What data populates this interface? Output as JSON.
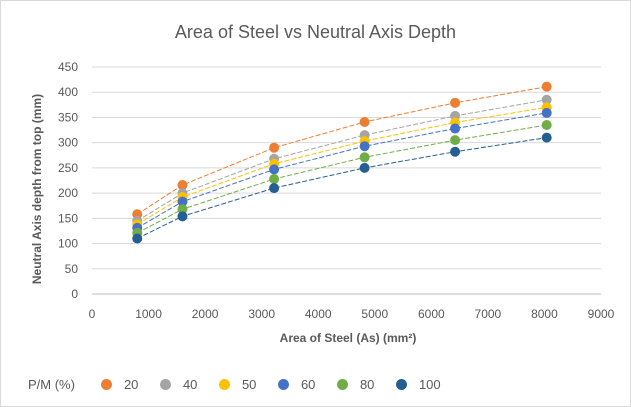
{
  "chart_data": {
    "type": "line",
    "title": "Area of Steel vs Neutral Axis Depth",
    "xlabel": "Area of Steel (As) (mm²)",
    "ylabel": "Neutral Axis depth from top (mm)",
    "xlim": [
      0,
      9000
    ],
    "ylim": [
      0,
      450
    ],
    "xticks": [
      "0",
      "1000",
      "2000",
      "3000",
      "4000",
      "5000",
      "6000",
      "7000",
      "8000",
      "9000"
    ],
    "yticks": [
      "0",
      "50",
      "100",
      "150",
      "200",
      "250",
      "300",
      "350",
      "400",
      "450"
    ],
    "grid": "horizontal",
    "legend_position": "bottom",
    "legend_title": "P/M (%)",
    "x": [
      800,
      1600,
      3220,
      4820,
      6420,
      8040
    ],
    "series": [
      {
        "name": "20",
        "color": "#ED7D31",
        "values": [
          158,
          216,
          290,
          341,
          379,
          411
        ]
      },
      {
        "name": "40",
        "color": "#A5A5A5",
        "values": [
          145,
          200,
          268,
          315,
          353,
          385
        ]
      },
      {
        "name": "50",
        "color": "#FFC000",
        "values": [
          138,
          192,
          258,
          303,
          340,
          370
        ]
      },
      {
        "name": "60",
        "color": "#4472C4",
        "values": [
          131,
          183,
          247,
          293,
          328,
          359
        ]
      },
      {
        "name": "80",
        "color": "#70AD47",
        "values": [
          121,
          168,
          228,
          271,
          305,
          335
        ]
      },
      {
        "name": "100",
        "color": "#255E91",
        "values": [
          110,
          154,
          210,
          250,
          282,
          310
        ]
      }
    ]
  }
}
